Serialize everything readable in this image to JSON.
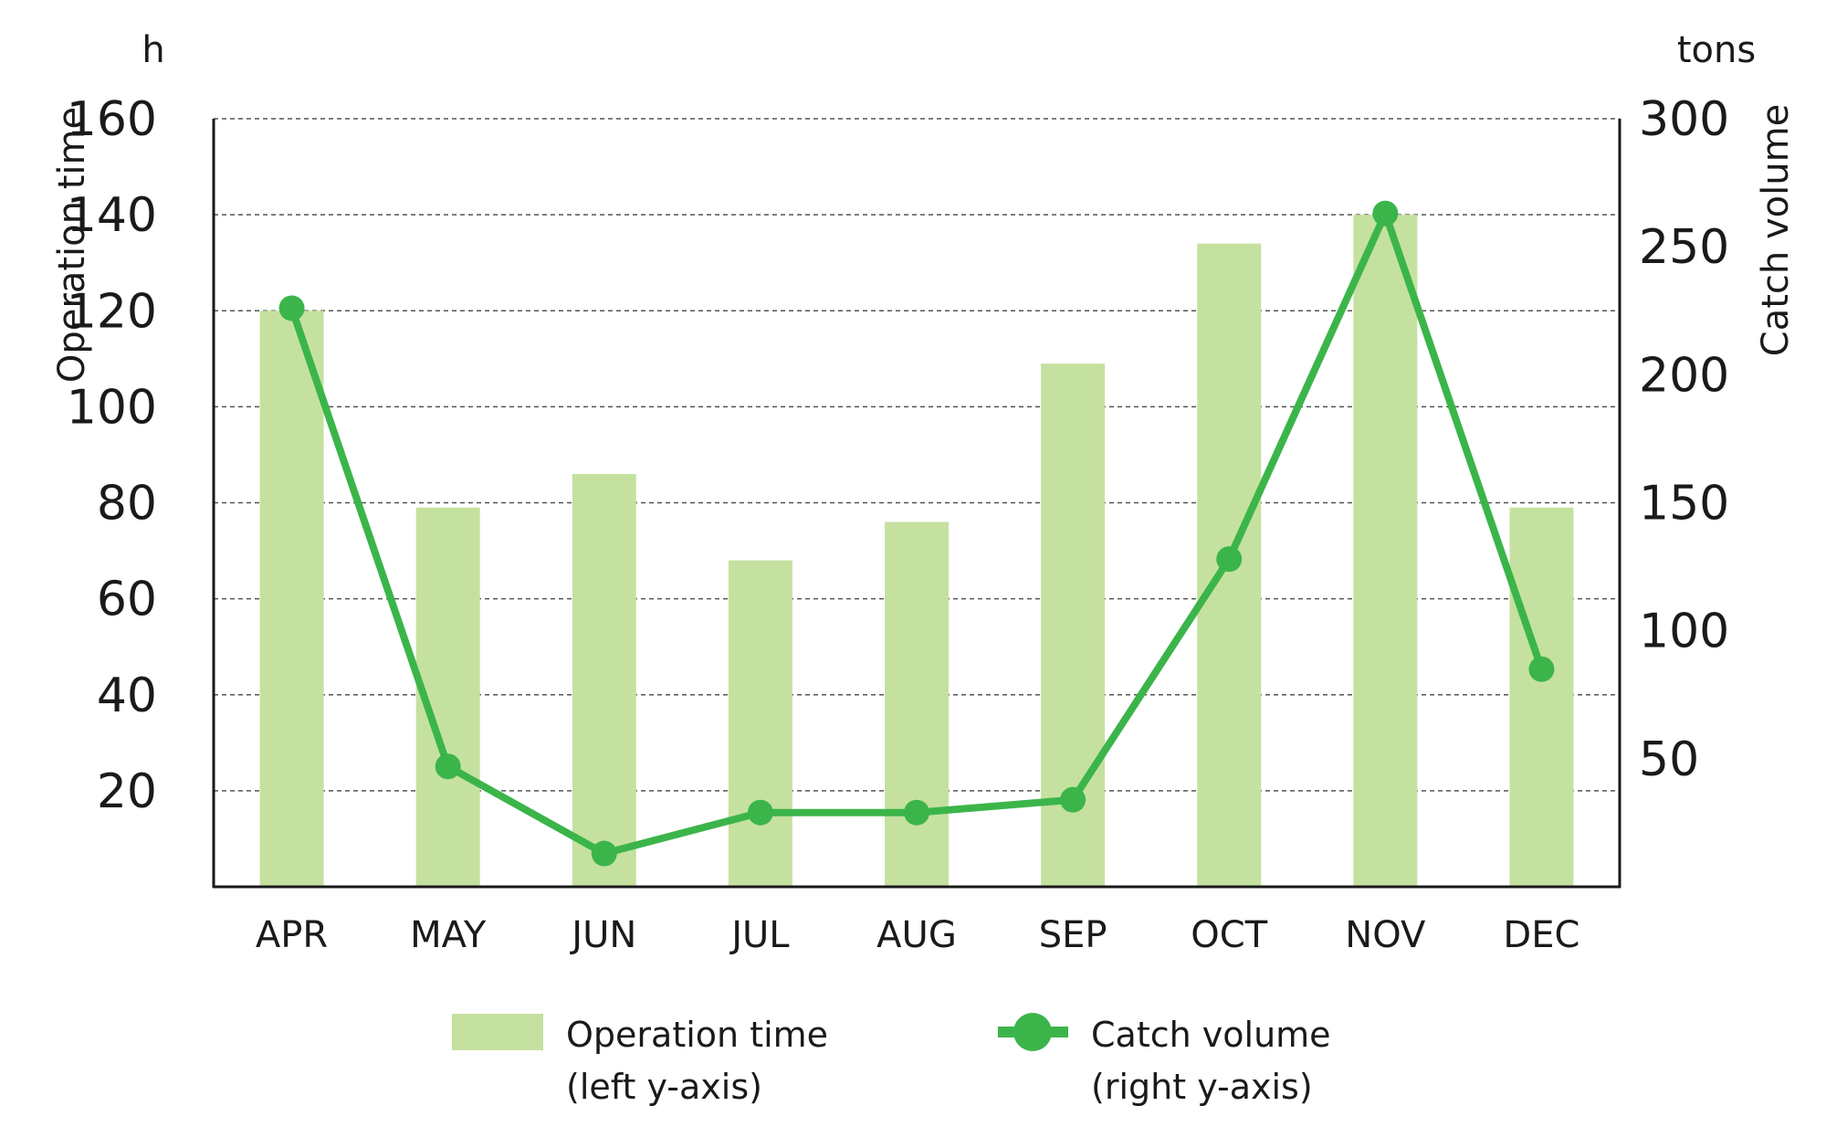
{
  "chart_data": {
    "type": "bar+line",
    "categories": [
      "APR",
      "MAY",
      "JUN",
      "JUL",
      "AUG",
      "SEP",
      "OCT",
      "NOV",
      "DEC"
    ],
    "series": [
      {
        "name": "Operation time",
        "type": "bar",
        "axis": "left",
        "values": [
          120,
          79,
          86,
          68,
          76,
          109,
          134,
          140,
          79
        ]
      },
      {
        "name": "Catch volume",
        "type": "line",
        "axis": "right",
        "values": [
          226,
          47,
          13,
          29,
          29,
          34,
          128,
          263,
          85
        ]
      }
    ],
    "left_axis": {
      "title": "Operation time",
      "unit": "h",
      "ylim": [
        0,
        160
      ],
      "ticks": [
        20,
        40,
        60,
        80,
        100,
        120,
        140,
        160
      ]
    },
    "right_axis": {
      "title": "Catch volume",
      "unit": "tons",
      "ylim": [
        0,
        300
      ],
      "ticks": [
        50,
        100,
        150,
        200,
        250,
        300
      ]
    },
    "grid": true,
    "legend": {
      "position": "bottom",
      "items": [
        {
          "line1": "Operation time",
          "line2": "(left y-axis)"
        },
        {
          "line1": "Catch volume",
          "line2": "(right y-axis)"
        }
      ]
    },
    "colors": {
      "bar": "#c5e1a0",
      "line": "#3bb54a",
      "grid": "#555555",
      "axis": "#1a1a1a"
    }
  }
}
